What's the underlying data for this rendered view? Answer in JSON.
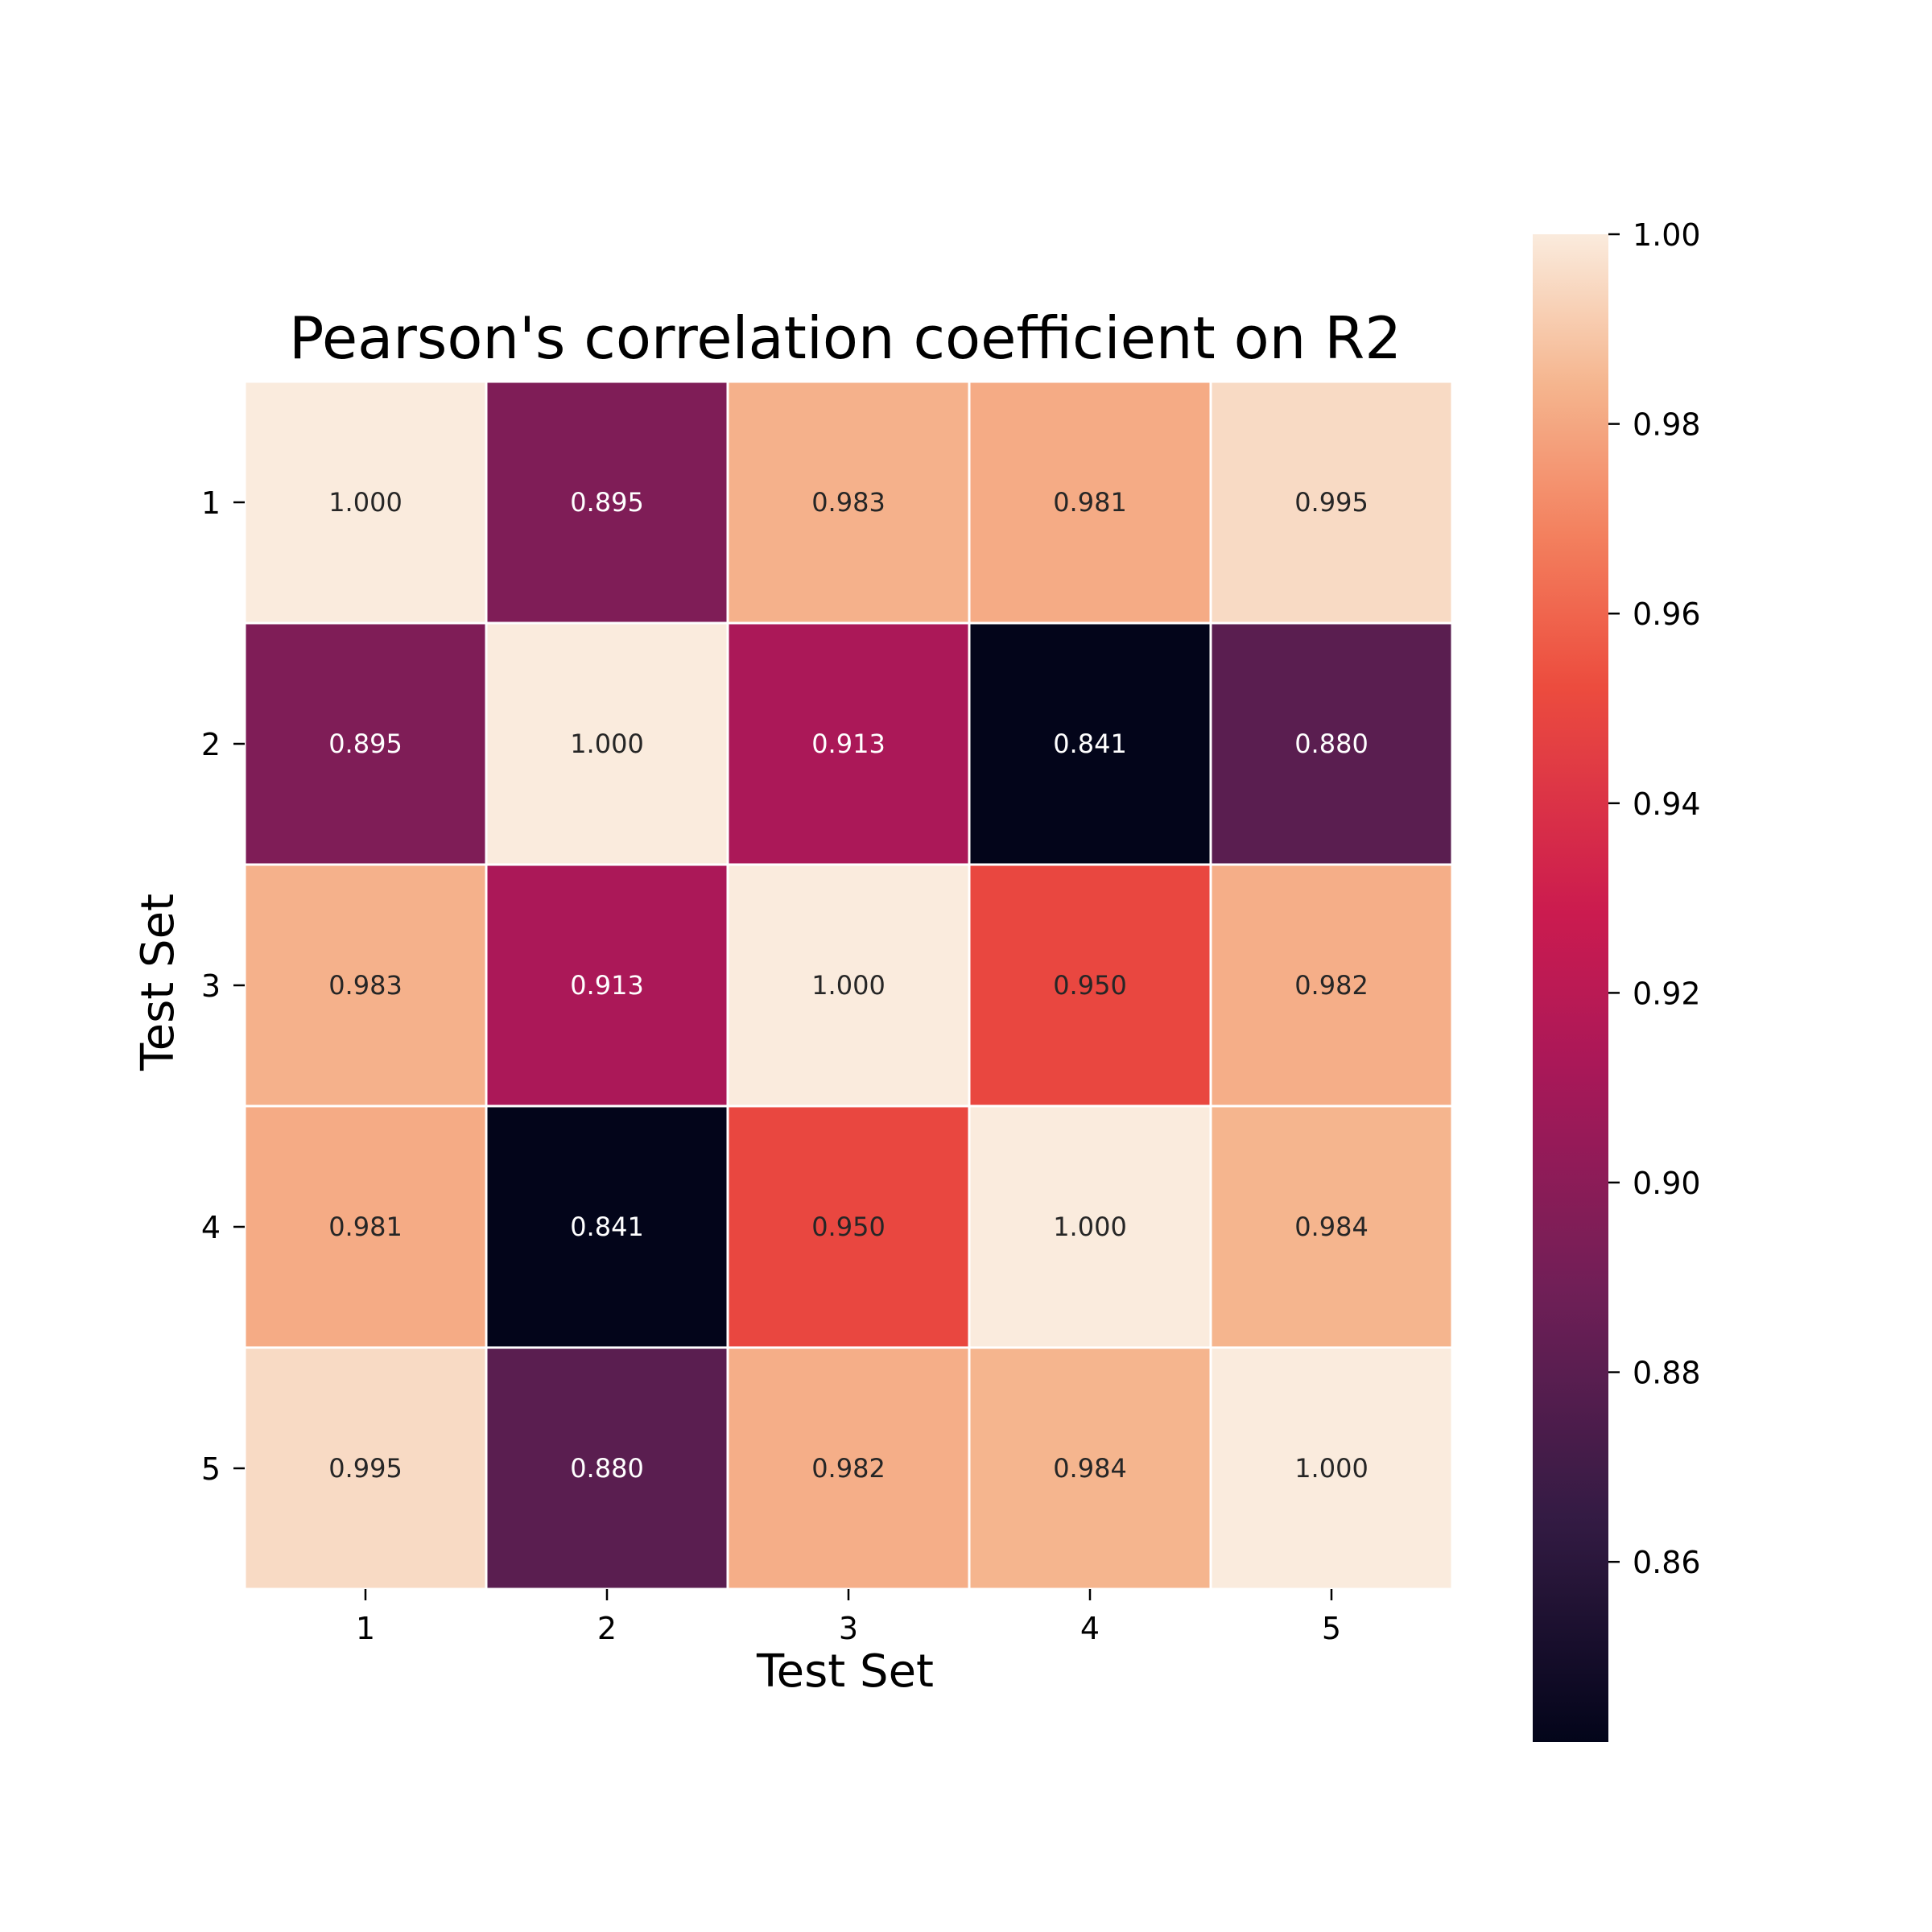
{
  "chart_data": {
    "type": "heatmap",
    "title": "Pearson's correlation coefficient on R2",
    "xlabel": "Test Set",
    "ylabel": "Test Set",
    "x_categories": [
      "1",
      "2",
      "3",
      "4",
      "5"
    ],
    "y_categories": [
      "1",
      "2",
      "3",
      "4",
      "5"
    ],
    "values": [
      [
        1.0,
        0.895,
        0.983,
        0.981,
        0.995
      ],
      [
        0.895,
        1.0,
        0.913,
        0.841,
        0.88
      ],
      [
        0.983,
        0.913,
        1.0,
        0.95,
        0.982
      ],
      [
        0.981,
        0.841,
        0.95,
        1.0,
        0.984
      ],
      [
        0.995,
        0.88,
        0.982,
        0.984,
        1.0
      ]
    ],
    "labels": [
      [
        "1.000",
        "0.895",
        "0.983",
        "0.981",
        "0.995"
      ],
      [
        "0.895",
        "1.000",
        "0.913",
        "0.841",
        "0.880"
      ],
      [
        "0.983",
        "0.913",
        "1.000",
        "0.950",
        "0.982"
      ],
      [
        "0.981",
        "0.841",
        "0.950",
        "1.000",
        "0.984"
      ],
      [
        "0.995",
        "0.880",
        "0.982",
        "0.984",
        "1.000"
      ]
    ],
    "colormap": "rocket",
    "colorbar": {
      "vmin": 0.841,
      "vmax": 1.0,
      "ticks": [
        0.86,
        0.88,
        0.9,
        0.92,
        0.94,
        0.96,
        0.98,
        1.0
      ],
      "tick_labels": [
        "0.86",
        "0.88",
        "0.90",
        "0.92",
        "0.94",
        "0.96",
        "0.98",
        "1.00"
      ]
    },
    "grid": false,
    "cell_border_color": "#ffffff"
  }
}
